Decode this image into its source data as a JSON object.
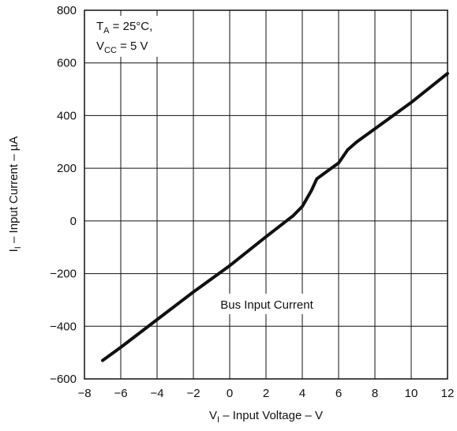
{
  "chart_data": {
    "type": "line",
    "title": "",
    "xlabel": {
      "main": "V",
      "sub": "I",
      "rest": " – Input Voltage – V"
    },
    "ylabel": {
      "main": "I",
      "sub": "I",
      "rest": " – Input Current – µA"
    },
    "xlim": [
      -8,
      12
    ],
    "ylim": [
      -600,
      800
    ],
    "x_ticks": [
      "−8",
      "−6",
      "−4",
      "−2",
      "0",
      "2",
      "4",
      "6",
      "8",
      "10",
      "12"
    ],
    "y_ticks": [
      "800",
      "600",
      "400",
      "200",
      "0",
      "−200",
      "−400",
      "−600"
    ],
    "grid": true,
    "conditions": {
      "line1": {
        "main": "T",
        "sub": "A",
        "rest": " = 25°C,"
      },
      "line2": {
        "main": "V",
        "sub": "CC",
        "rest": " = 5 V"
      }
    },
    "annotation": "Bus Input Current",
    "series": [
      {
        "x": [
          -7,
          -6,
          -4,
          -2,
          0,
          2,
          3.5,
          4,
          4.5,
          4.8,
          5.5,
          6,
          6.5,
          7,
          8,
          10,
          12
        ],
        "y": [
          -530,
          -480,
          -375,
          -270,
          -170,
          -60,
          20,
          55,
          115,
          160,
          195,
          220,
          270,
          300,
          350,
          450,
          560
        ]
      }
    ]
  }
}
